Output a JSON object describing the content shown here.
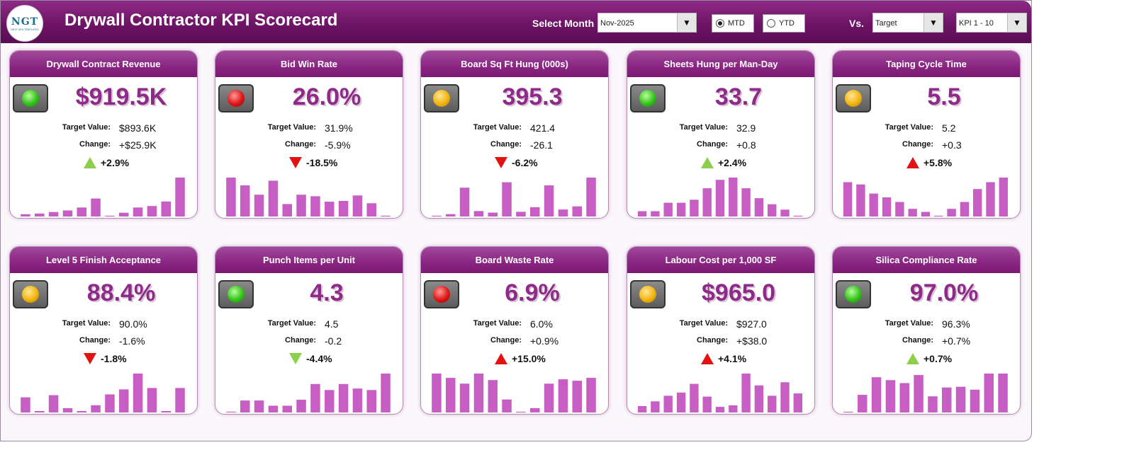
{
  "header": {
    "logo_text": "NGT",
    "logo_sub": "NEXT GEN TEMPLATES",
    "title": "Drywall Contractor KPI Scorecard",
    "select_month_label": "Select Month",
    "month_value": "Nov-2025",
    "mtd_label": "MTD",
    "ytd_label": "YTD",
    "mtd_selected": true,
    "vs_label": "Vs.",
    "vs_value": "Target",
    "kpi_range_value": "KPI 1 - 10"
  },
  "colors": {
    "accent": "#8e2a87",
    "bar": "#c75ec4",
    "good": "#8bcf4d",
    "bad": "#e31212"
  },
  "cards": [
    {
      "title": "Drywall Contract Revenue",
      "value": "$919.5K",
      "light": "green",
      "target_label": "Target Value:",
      "target": "$893.6K",
      "change_label": "Change:",
      "change": "+$25.9K",
      "pct": "+2.9%",
      "arrow": "up-green",
      "bars": [
        3,
        4,
        6,
        8,
        12,
        24,
        1,
        5,
        12,
        14,
        20,
        52
      ]
    },
    {
      "title": "Bid Win Rate",
      "value": "26.0%",
      "light": "red",
      "target_label": "Target Value:",
      "target": "31.9%",
      "change_label": "Change:",
      "change": "-5.9%",
      "pct": "-18.5%",
      "arrow": "down-red",
      "bars": [
        50,
        40,
        28,
        46,
        16,
        28,
        26,
        19,
        20,
        27,
        17,
        1
      ]
    },
    {
      "title": "Board Sq Ft Hung (000s)",
      "value": "395.3",
      "light": "amber",
      "target_label": "Target Value:",
      "target": "421.4",
      "change_label": "Change:",
      "change": "-26.1",
      "pct": "-6.2%",
      "arrow": "down-red",
      "bars": [
        1,
        3,
        37,
        7,
        5,
        44,
        6,
        12,
        40,
        9,
        13,
        50
      ]
    },
    {
      "title": "Sheets Hung per Man-Day",
      "value": "33.7",
      "light": "green",
      "target_label": "Target Value:",
      "target": "32.9",
      "change_label": "Change:",
      "change": "+0.8",
      "pct": "+2.4%",
      "arrow": "up-green",
      "bars": [
        7,
        7,
        18,
        18,
        22,
        37,
        48,
        51,
        37,
        24,
        16,
        9,
        1
      ]
    },
    {
      "title": "Taping Cycle Time",
      "value": "5.5",
      "light": "amber",
      "target_label": "Target Value:",
      "target": "5.2",
      "change_label": "Change:",
      "change": "+0.3",
      "pct": "+5.8%",
      "arrow": "up-red",
      "bars": [
        45,
        42,
        30,
        25,
        19,
        10,
        6,
        1,
        10,
        19,
        36,
        45,
        51
      ]
    },
    {
      "title": "Level 5 Finish Acceptance",
      "value": "88.4%",
      "light": "amber",
      "target_label": "Target Value:",
      "target": "90.0%",
      "change_label": "Change:",
      "change": "-1.6%",
      "pct": "-1.8%",
      "arrow": "down-red",
      "bars": [
        21,
        2,
        24,
        6,
        2,
        10,
        25,
        32,
        54,
        34,
        2,
        34
      ]
    },
    {
      "title": "Punch Items per Unit",
      "value": "4.3",
      "light": "green",
      "target_label": "Target Value:",
      "target": "4.5",
      "change_label": "Change:",
      "change": "-0.2",
      "pct": "-4.4%",
      "arrow": "down-green",
      "bars": [
        1,
        16,
        16,
        9,
        9,
        17,
        38,
        30,
        38,
        32,
        30,
        52
      ]
    },
    {
      "title": "Board Waste Rate",
      "value": "6.9%",
      "light": "red",
      "target_label": "Target Value:",
      "target": "6.0%",
      "change_label": "Change:",
      "change": "+0.9%",
      "pct": "+15.0%",
      "arrow": "up-red",
      "bars": [
        54,
        48,
        40,
        54,
        45,
        18,
        1,
        6,
        40,
        46,
        44,
        48
      ]
    },
    {
      "title": "Labour Cost per 1,000 SF",
      "value": "$965.0",
      "light": "amber",
      "target_label": "Target Value:",
      "target": "$927.0",
      "change_label": "Change:",
      "change": "+$38.0",
      "pct": "+4.1%",
      "arrow": "up-red",
      "bars": [
        8,
        14,
        21,
        25,
        36,
        20,
        7,
        9,
        49,
        34,
        21,
        38,
        24
      ]
    },
    {
      "title": "Silica Compliance Rate",
      "value": "97.0%",
      "light": "green",
      "target_label": "Target Value:",
      "target": "96.3%",
      "change_label": "Change:",
      "change": "+0.7%",
      "pct": "+0.7%",
      "arrow": "up-green",
      "bars": [
        1,
        24,
        48,
        44,
        40,
        51,
        22,
        34,
        35,
        31,
        53,
        53
      ]
    }
  ]
}
